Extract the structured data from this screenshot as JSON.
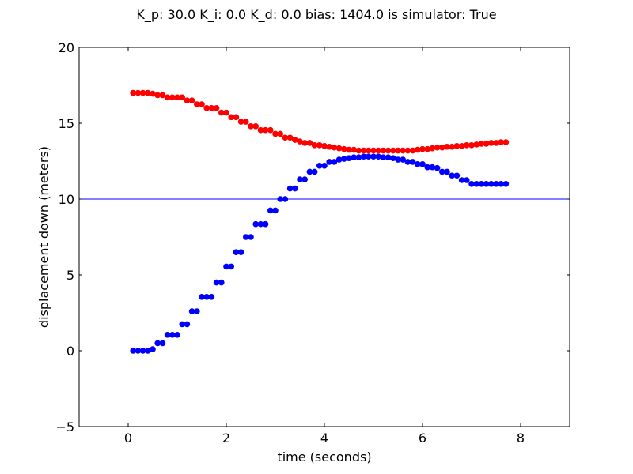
{
  "chart_data": {
    "type": "scatter",
    "title": "K_p: 30.0 K_i: 0.0 K_d: 0.0 bias: 1404.0 is simulator: True",
    "xlabel": "time (seconds)",
    "ylabel": "displacement down (meters)",
    "xlim": [
      -1,
      9
    ],
    "ylim": [
      -5,
      20
    ],
    "x_ticks": [
      "0",
      "2",
      "4",
      "6",
      "8"
    ],
    "x_tick_values": [
      0,
      2,
      4,
      6,
      8
    ],
    "y_ticks": [
      "−5",
      "0",
      "5",
      "10",
      "15",
      "20"
    ],
    "y_tick_values": [
      -5,
      0,
      5,
      10,
      15,
      20
    ],
    "grid": false,
    "hlines": [
      {
        "y": 10,
        "color": "#0000ff"
      }
    ],
    "series": [
      {
        "color": "#ff0000",
        "x": [
          0.1,
          0.2,
          0.3,
          0.4,
          0.5,
          0.6,
          0.7,
          0.8,
          0.9,
          1.0,
          1.1,
          1.2,
          1.3,
          1.4,
          1.5,
          1.6,
          1.7,
          1.8,
          1.9,
          2.0,
          2.1,
          2.2,
          2.3,
          2.4,
          2.5,
          2.6,
          2.7,
          2.8,
          2.9,
          3.0,
          3.1,
          3.2,
          3.3,
          3.4,
          3.5,
          3.6,
          3.7,
          3.8,
          3.9,
          4.0,
          4.1,
          4.2,
          4.3,
          4.4,
          4.5,
          4.6,
          4.7,
          4.8,
          4.9,
          5.0,
          5.1,
          5.2,
          5.3,
          5.4,
          5.5,
          5.6,
          5.7,
          5.8,
          5.9,
          6.0,
          6.1,
          6.2,
          6.3,
          6.4,
          6.5,
          6.6,
          6.7,
          6.8,
          6.9,
          7.0,
          7.1,
          7.2,
          7.3,
          7.4,
          7.5,
          7.6,
          7.7
        ],
        "y": [
          17.0,
          17.0,
          17.0,
          17.0,
          16.95,
          16.85,
          16.85,
          16.7,
          16.7,
          16.7,
          16.7,
          16.5,
          16.5,
          16.25,
          16.25,
          16.0,
          16.0,
          16.0,
          15.7,
          15.7,
          15.4,
          15.4,
          15.1,
          15.1,
          14.8,
          14.8,
          14.55,
          14.55,
          14.55,
          14.3,
          14.3,
          14.05,
          14.05,
          13.9,
          13.8,
          13.7,
          13.7,
          13.55,
          13.55,
          13.5,
          13.45,
          13.4,
          13.35,
          13.3,
          13.25,
          13.25,
          13.2,
          13.2,
          13.2,
          13.2,
          13.2,
          13.2,
          13.2,
          13.2,
          13.2,
          13.2,
          13.2,
          13.2,
          13.25,
          13.3,
          13.3,
          13.35,
          13.4,
          13.4,
          13.45,
          13.45,
          13.5,
          13.5,
          13.55,
          13.55,
          13.6,
          13.65,
          13.65,
          13.7,
          13.7,
          13.75,
          13.75
        ]
      },
      {
        "color": "#0000ff",
        "x": [
          0.1,
          0.2,
          0.3,
          0.4,
          0.5,
          0.6,
          0.7,
          0.8,
          0.9,
          1.0,
          1.1,
          1.2,
          1.3,
          1.4,
          1.5,
          1.6,
          1.7,
          1.8,
          1.9,
          2.0,
          2.1,
          2.2,
          2.3,
          2.4,
          2.5,
          2.6,
          2.7,
          2.8,
          2.9,
          3.0,
          3.1,
          3.2,
          3.3,
          3.4,
          3.5,
          3.6,
          3.7,
          3.8,
          3.9,
          4.0,
          4.1,
          4.2,
          4.3,
          4.4,
          4.5,
          4.6,
          4.7,
          4.8,
          4.9,
          5.0,
          5.1,
          5.2,
          5.3,
          5.4,
          5.5,
          5.6,
          5.7,
          5.8,
          5.9,
          6.0,
          6.1,
          6.2,
          6.3,
          6.4,
          6.5,
          6.6,
          6.7,
          6.8,
          6.9,
          7.0,
          7.1,
          7.2,
          7.3,
          7.4,
          7.5,
          7.6,
          7.7
        ],
        "y": [
          0.0,
          0.0,
          0.0,
          0.0,
          0.1,
          0.5,
          0.5,
          1.05,
          1.05,
          1.05,
          1.75,
          1.75,
          2.6,
          2.6,
          3.55,
          3.55,
          3.55,
          4.5,
          4.5,
          5.55,
          5.55,
          6.5,
          6.5,
          7.5,
          7.5,
          8.35,
          8.35,
          8.35,
          9.25,
          9.25,
          10.0,
          10.0,
          10.7,
          10.7,
          11.3,
          11.3,
          11.8,
          11.8,
          12.2,
          12.2,
          12.45,
          12.45,
          12.6,
          12.65,
          12.7,
          12.75,
          12.75,
          12.8,
          12.8,
          12.8,
          12.8,
          12.75,
          12.75,
          12.7,
          12.6,
          12.6,
          12.45,
          12.45,
          12.3,
          12.3,
          12.1,
          12.1,
          12.05,
          11.8,
          11.8,
          11.55,
          11.55,
          11.25,
          11.25,
          11.0,
          11.0,
          11.0,
          11.0,
          11.0,
          11.0,
          11.0,
          11.0
        ]
      }
    ]
  }
}
